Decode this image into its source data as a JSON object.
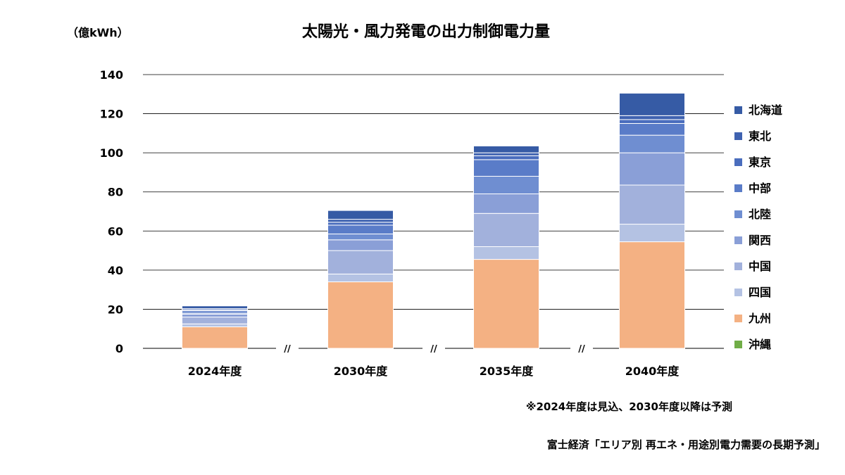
{
  "chart_data": {
    "type": "bar",
    "stacked": true,
    "title": "太陽光・風力発電の出力制御電力量",
    "unit_label": "（億kWh）",
    "categories": [
      "2024年度",
      "2030年度",
      "2035年度",
      "2040年度"
    ],
    "ylim": [
      0,
      140
    ],
    "yticks": [
      "0",
      "20",
      "40",
      "60",
      "80",
      "100",
      "120",
      "140"
    ],
    "ytick_values": [
      0,
      20,
      40,
      60,
      80,
      100,
      120,
      140
    ],
    "grid": true,
    "legend_position": "right",
    "axis_break_mark": "//",
    "series": [
      {
        "name": "沖縄",
        "color": "#70AD47",
        "values": [
          0,
          0,
          0,
          0
        ]
      },
      {
        "name": "九州",
        "color": "#F4B183",
        "values": [
          11,
          34,
          45.5,
          54.5
        ]
      },
      {
        "name": "四国",
        "color": "#B4C2E3",
        "values": [
          1.5,
          4,
          6.5,
          9
        ]
      },
      {
        "name": "中国",
        "color": "#A2B1DC",
        "values": [
          3.5,
          12,
          17,
          20
        ]
      },
      {
        "name": "関西",
        "color": "#8A9FD7",
        "values": [
          1.5,
          5.5,
          10,
          16.5
        ]
      },
      {
        "name": "北陸",
        "color": "#6F8ED1",
        "values": [
          0.5,
          3,
          9,
          9
        ]
      },
      {
        "name": "中部",
        "color": "#5A7CC8",
        "values": [
          1.2,
          4.5,
          8.5,
          6
        ]
      },
      {
        "name": "東京",
        "color": "#4A6DBD",
        "values": [
          0.5,
          1.5,
          2,
          2
        ]
      },
      {
        "name": "東北",
        "color": "#3F62B0",
        "values": [
          0.6,
          1.5,
          1.5,
          2
        ]
      },
      {
        "name": "北海道",
        "color": "#365BA5",
        "values": [
          1.4,
          4.5,
          3.5,
          11.5
        ]
      }
    ],
    "annotations": [
      "※2024年度は見込、2030年度以降は予測",
      "富士経済「エリア別 再エネ・用途別電力需要の長期予測」"
    ]
  }
}
